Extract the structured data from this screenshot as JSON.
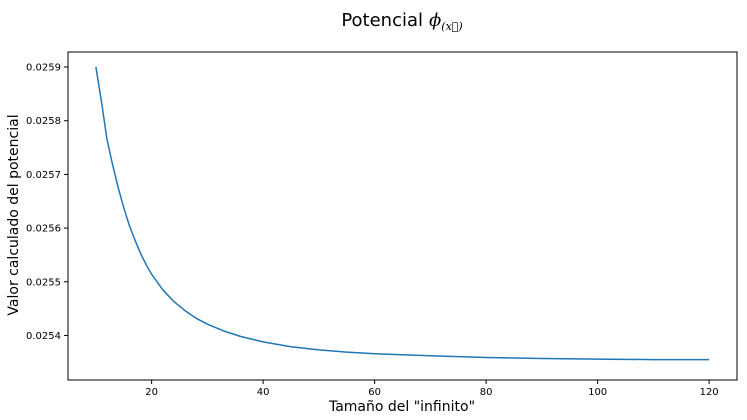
{
  "chart_data": {
    "type": "line",
    "title": {
      "text": "Potencial",
      "symbol": "ϕ",
      "subscript": "(x⃗)"
    },
    "xlabel": "Tamaño del \"infinito\"",
    "ylabel": "Valor calculado del potencial",
    "xlim": [
      5,
      125
    ],
    "ylim": [
      0.025317,
      0.025928
    ],
    "xticks": [
      {
        "value": 20,
        "label": "20"
      },
      {
        "value": 40,
        "label": "40"
      },
      {
        "value": 60,
        "label": "60"
      },
      {
        "value": 80,
        "label": "80"
      },
      {
        "value": 100,
        "label": "100"
      },
      {
        "value": 120,
        "label": "120"
      }
    ],
    "yticks": [
      {
        "value": 0.0254,
        "label": "0.0254"
      },
      {
        "value": 0.0255,
        "label": "0.0255"
      },
      {
        "value": 0.0256,
        "label": "0.0256"
      },
      {
        "value": 0.0257,
        "label": "0.0257"
      },
      {
        "value": 0.0258,
        "label": "0.0258"
      },
      {
        "value": 0.0259,
        "label": "0.0259"
      }
    ],
    "grid": false,
    "series": [
      {
        "color": "#1f77b4",
        "x": [
          10,
          11,
          12,
          13,
          14,
          15,
          16,
          17,
          18,
          19,
          20,
          22,
          24,
          26,
          28,
          30,
          33,
          36,
          40,
          45,
          50,
          55,
          60,
          70,
          80,
          90,
          100,
          110,
          120
        ],
        "y": [
          0.0259,
          0.025835,
          0.025765,
          0.025718,
          0.025675,
          0.025638,
          0.025605,
          0.025578,
          0.025553,
          0.025532,
          0.025514,
          0.025485,
          0.025463,
          0.025446,
          0.025432,
          0.025421,
          0.025408,
          0.025398,
          0.025388,
          0.025379,
          0.025373,
          0.025369,
          0.025366,
          0.025362,
          0.025359,
          0.025357,
          0.025356,
          0.025355,
          0.025355
        ]
      }
    ]
  }
}
